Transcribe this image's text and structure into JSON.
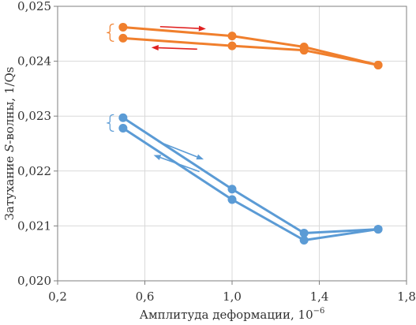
{
  "chart_data": {
    "type": "line",
    "xlabel_main": "Амплитуда деформации, 10",
    "xlabel_sup": "−6",
    "ylabel_pre": "Затухание ",
    "ylabel_italic": "S",
    "ylabel_post": "-волны, 1/Qs",
    "xlim": [
      0.2,
      1.8
    ],
    "ylim": [
      0.02,
      0.025
    ],
    "xticks": [
      0.2,
      0.6,
      1.0,
      1.4,
      1.8
    ],
    "xtick_labels": [
      "0,2",
      "0,6",
      "1,0",
      "1,4",
      "1,8"
    ],
    "yticks": [
      0.02,
      0.021,
      0.022,
      0.023,
      0.024,
      0.025
    ],
    "ytick_labels": [
      "0,020",
      "0,021",
      "0,022",
      "0,023",
      "0,024",
      "0,025"
    ],
    "grid": true,
    "series": [
      {
        "color": "#f07f2d",
        "x": [
          0.5,
          1.0,
          1.33,
          1.67
        ],
        "y": [
          0.02462,
          0.02446,
          0.02426,
          0.02393
        ]
      },
      {
        "color": "#f07f2d",
        "x": [
          0.5,
          1.0,
          1.33,
          1.67
        ],
        "y": [
          0.02442,
          0.02428,
          0.0242,
          0.02393
        ]
      },
      {
        "color": "#5b9bd5",
        "x": [
          0.5,
          1.0,
          1.33,
          1.67
        ],
        "y": [
          0.02297,
          0.02167,
          0.02087,
          0.02094
        ]
      },
      {
        "color": "#5b9bd5",
        "x": [
          0.5,
          1.0,
          1.33,
          1.67
        ],
        "y": [
          0.02278,
          0.02148,
          0.02074,
          0.02094
        ]
      }
    ],
    "annotations": [
      {
        "kind": "arrow",
        "color": "#e02020",
        "from": [
          0.67,
          0.02463
        ],
        "to": [
          0.88,
          0.02459
        ]
      },
      {
        "kind": "arrow",
        "color": "#e02020",
        "from": [
          0.84,
          0.02422
        ],
        "to": [
          0.63,
          0.02425
        ]
      },
      {
        "kind": "arrow",
        "color": "#5b9bd5",
        "from": [
          0.66,
          0.02254
        ],
        "to": [
          0.87,
          0.02221
        ]
      },
      {
        "kind": "arrow",
        "color": "#5b9bd5",
        "from": [
          0.85,
          0.02199
        ],
        "to": [
          0.64,
          0.02229
        ]
      },
      {
        "kind": "brace",
        "color": "#f07f2d",
        "x": 0.44,
        "y_range": [
          0.02442,
          0.02462
        ]
      },
      {
        "kind": "brace",
        "color": "#5b9bd5",
        "x": 0.44,
        "y_range": [
          0.02278,
          0.02297
        ]
      }
    ]
  }
}
